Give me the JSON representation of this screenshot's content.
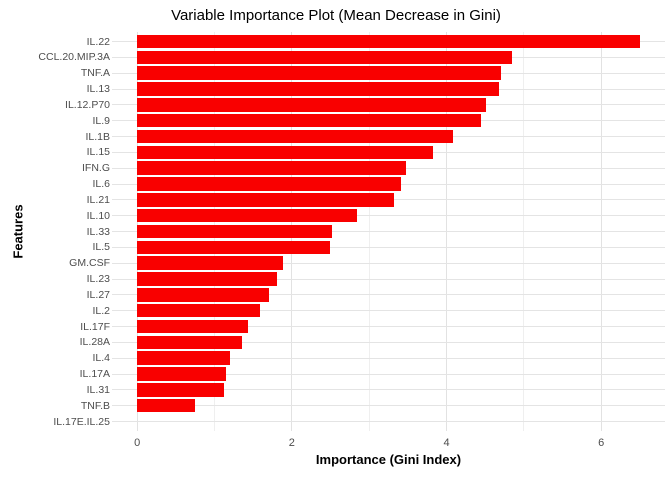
{
  "chart_data": {
    "type": "bar",
    "orientation": "horizontal",
    "title": "Variable Importance Plot (Mean Decrease in Gini)",
    "xlabel": "Importance (Gini Index)",
    "ylabel": "Features",
    "categories": [
      "IL.22",
      "CCL.20.MIP.3A",
      "TNF.A",
      "IL.13",
      "IL.12.P70",
      "IL.9",
      "IL.1B",
      "IL.15",
      "IFN.G",
      "IL.6",
      "IL.21",
      "IL.10",
      "IL.33",
      "IL.5",
      "GM.CSF",
      "IL.23",
      "IL.27",
      "IL.2",
      "IL.17F",
      "IL.28A",
      "IL.4",
      "IL.17A",
      "IL.31",
      "TNF.B",
      "IL.17E.IL.25"
    ],
    "values": [
      6.5,
      4.85,
      4.71,
      4.68,
      4.51,
      4.44,
      4.08,
      3.82,
      3.48,
      3.41,
      3.32,
      2.84,
      2.52,
      2.5,
      1.88,
      1.81,
      1.7,
      1.59,
      1.44,
      1.36,
      1.2,
      1.15,
      1.12,
      0.75,
      0.0
    ],
    "x_ticks": [
      "0",
      "2",
      "4",
      "6"
    ],
    "x_tick_values": [
      0,
      2,
      4,
      6
    ],
    "x_minor_tick_values": [
      1,
      3,
      5
    ],
    "xlim": [
      -0.325,
      6.825
    ],
    "grid": "vertical major + minor, horizontal line per category, no axis lines",
    "legend": "none",
    "colors": {
      "bar": "#f90000",
      "grid_major": "#e2e2e2",
      "grid_minor": "#efefef",
      "row_grid": "#e4e4e4",
      "tick_label": "#4d4d4d",
      "title": "#000000",
      "axis_title": "#000000",
      "background": "#ffffff"
    }
  }
}
